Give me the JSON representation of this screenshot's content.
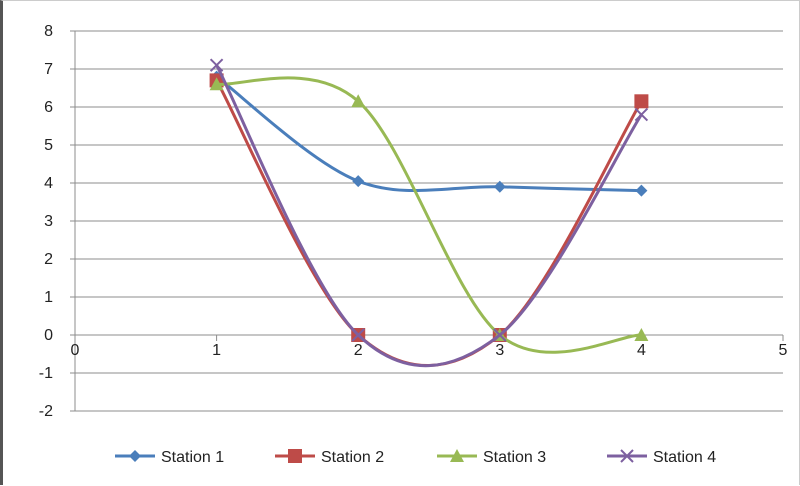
{
  "chart_data": {
    "type": "line",
    "smooth": true,
    "title": "",
    "xlabel": "",
    "ylabel": "",
    "xlim": [
      0,
      5
    ],
    "ylim": [
      -2,
      8
    ],
    "x_ticks": [
      0,
      1,
      2,
      3,
      4,
      5
    ],
    "y_ticks": [
      -2,
      -1,
      0,
      1,
      2,
      3,
      4,
      5,
      6,
      7,
      8
    ],
    "grid": "horizontal",
    "legend_position": "bottom",
    "x": [
      1,
      2,
      3,
      4
    ],
    "series": [
      {
        "name": "Station 1",
        "values": [
          6.8,
          4.05,
          3.9,
          3.8
        ],
        "color": "#4a7ebb",
        "marker": "diamond"
      },
      {
        "name": "Station 2",
        "values": [
          6.7,
          0.0,
          0.0,
          6.15
        ],
        "color": "#be4b48",
        "marker": "square"
      },
      {
        "name": "Station 3",
        "values": [
          6.6,
          6.15,
          0.0,
          0.0
        ],
        "color": "#98b954",
        "marker": "triangle"
      },
      {
        "name": "Station 4",
        "values": [
          7.1,
          0.0,
          0.0,
          5.8
        ],
        "color": "#7d60a0",
        "marker": "x"
      }
    ]
  }
}
